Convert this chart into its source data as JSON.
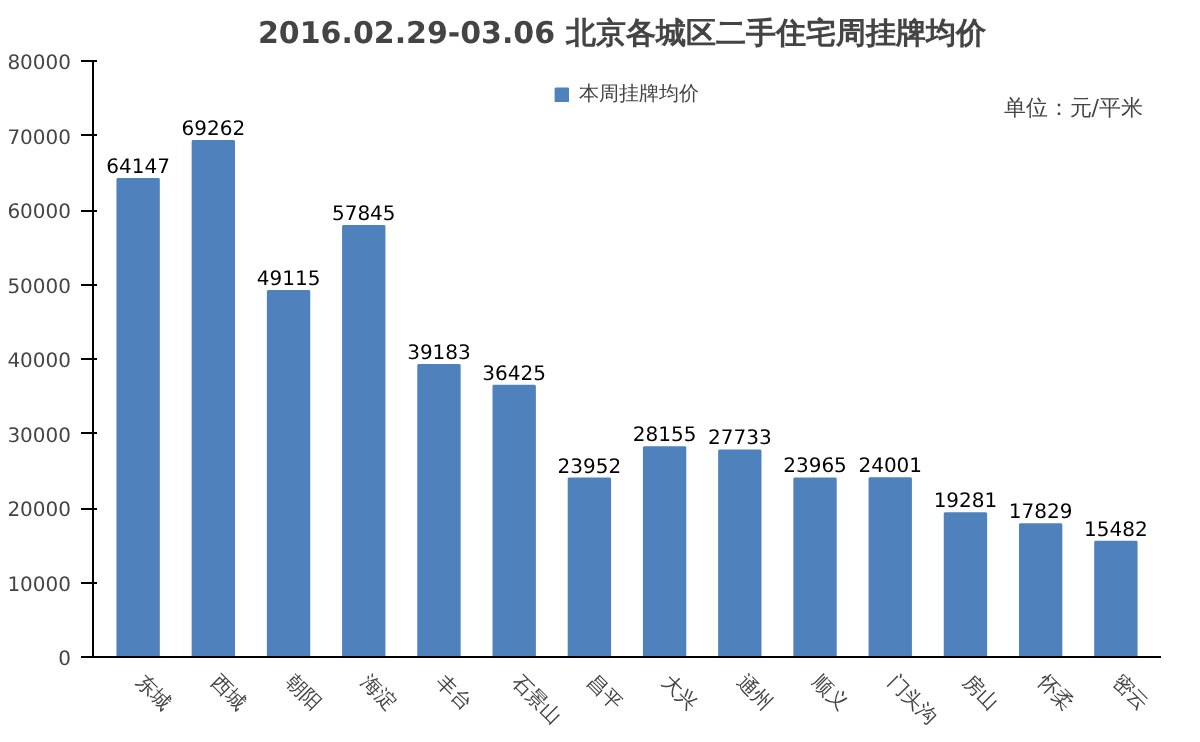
{
  "chart_data": {
    "type": "bar",
    "title": "2016.02.29-03.06  北京各城区二手住宅周挂牌均价",
    "annotations": [
      "单位：元/平米"
    ],
    "categories": [
      "东城",
      "西城",
      "朝阳",
      "海淀",
      "丰台",
      "石景山",
      "昌平",
      "大兴",
      "通州",
      "顺义",
      "门头沟",
      "房山",
      "怀柔",
      "密云"
    ],
    "series": [
      {
        "name": "本周挂牌均价",
        "color": "#4f81bd",
        "values": [
          64147,
          69262,
          49115,
          57845,
          39183,
          36425,
          23952,
          28155,
          27733,
          23965,
          24001,
          19281,
          17829,
          15482
        ]
      }
    ],
    "ylim": [
      0,
      80000
    ],
    "yticks": [
      0,
      10000,
      20000,
      30000,
      40000,
      50000,
      60000,
      70000,
      80000
    ],
    "data_labels": true,
    "grid": false,
    "legend": "top"
  }
}
